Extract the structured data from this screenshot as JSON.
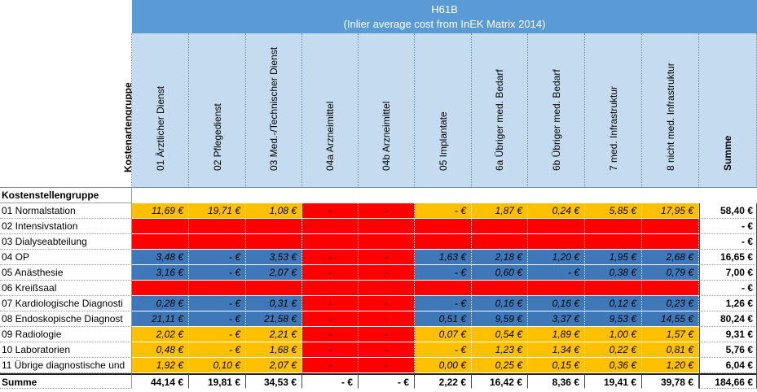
{
  "header": {
    "title": "H61B",
    "subtitle": "(Inlier average cost from InEK Matrix 2014)",
    "axis_label": "Kostenartengruppe",
    "row_group_label": "Kostenstellengruppe"
  },
  "columns": [
    "01 Ärztlicher Dienst",
    "02 Pflegedienst",
    "03 Med.-/Technischer Dienst",
    "04a Arzneimittel",
    "04b Arzneimittel",
    "05 Implantate",
    "6a Übriger med. Bedarf",
    "6b Übriger med. Bedarf",
    "7 med. Infrastruktur",
    "8 nicht med. Infrastruktur",
    "Summe"
  ],
  "colors": {
    "orange": "#ffc000",
    "red": "#ff0000",
    "blue": "#3e78b8",
    "header": "#c5dcf0",
    "title": "#5b9bd5"
  },
  "rows": [
    {
      "label": "01 Normalstation",
      "cells": [
        [
          "11,69 €",
          "o"
        ],
        [
          "19,71 €",
          "o"
        ],
        [
          "1,08 €",
          "o"
        ],
        [
          "-",
          "r"
        ],
        [
          "-",
          "r"
        ],
        [
          "-      €",
          "o"
        ],
        [
          "1,87 €",
          "o"
        ],
        [
          "0,24 €",
          "o"
        ],
        [
          "5,85 €",
          "o"
        ],
        [
          "17,95 €",
          "o"
        ]
      ],
      "sum": "58,40 €"
    },
    {
      "label": "02 Intensivstation",
      "cells": [
        [
          "",
          "r"
        ],
        [
          "",
          "r"
        ],
        [
          "",
          "r"
        ],
        [
          "",
          "r"
        ],
        [
          "",
          "r"
        ],
        [
          "",
          "r"
        ],
        [
          "",
          "r"
        ],
        [
          "",
          "r"
        ],
        [
          "",
          "r"
        ],
        [
          "",
          "r"
        ]
      ],
      "sum": "-      €"
    },
    {
      "label": "03 Dialyseabteilung",
      "cells": [
        [
          "",
          "r"
        ],
        [
          "",
          "r"
        ],
        [
          "",
          "r"
        ],
        [
          "",
          "r"
        ],
        [
          "",
          "r"
        ],
        [
          "",
          "r"
        ],
        [
          "",
          "r"
        ],
        [
          "",
          "r"
        ],
        [
          "",
          "r"
        ],
        [
          "",
          "r"
        ]
      ],
      "sum": "-      €"
    },
    {
      "label": "04 OP",
      "cells": [
        [
          "3,48 €",
          "b"
        ],
        [
          "-      €",
          "b"
        ],
        [
          "3,53 €",
          "b"
        ],
        [
          "-",
          "r"
        ],
        [
          "-",
          "r"
        ],
        [
          "1,63 €",
          "b"
        ],
        [
          "2,18 €",
          "b"
        ],
        [
          "1,20 €",
          "b"
        ],
        [
          "1,95 €",
          "b"
        ],
        [
          "2,68 €",
          "b"
        ]
      ],
      "sum": "16,65 €"
    },
    {
      "label": "05 Anästhesie",
      "cells": [
        [
          "3,16 €",
          "b"
        ],
        [
          "-      €",
          "b"
        ],
        [
          "2,07 €",
          "b"
        ],
        [
          "-",
          "r"
        ],
        [
          "-",
          "r"
        ],
        [
          "-      €",
          "b"
        ],
        [
          "0,60 €",
          "b"
        ],
        [
          "-      €",
          "b"
        ],
        [
          "0,38 €",
          "b"
        ],
        [
          "0,79 €",
          "b"
        ]
      ],
      "sum": "7,00 €"
    },
    {
      "label": "06 Kreißsaal",
      "cells": [
        [
          "",
          "r"
        ],
        [
          "",
          "r"
        ],
        [
          "",
          "r"
        ],
        [
          "",
          "r"
        ],
        [
          "",
          "r"
        ],
        [
          "",
          "r"
        ],
        [
          "",
          "r"
        ],
        [
          "",
          "r"
        ],
        [
          "",
          "r"
        ],
        [
          "",
          "r"
        ]
      ],
      "sum": "-      €"
    },
    {
      "label": "07 Kardiologische Diagnosti",
      "cells": [
        [
          "0,28 €",
          "b"
        ],
        [
          "-      €",
          "b"
        ],
        [
          "0,31 €",
          "b"
        ],
        [
          "-",
          "r"
        ],
        [
          "-",
          "r"
        ],
        [
          "-      €",
          "b"
        ],
        [
          "0,16 €",
          "b"
        ],
        [
          "0,16 €",
          "b"
        ],
        [
          "0,12 €",
          "b"
        ],
        [
          "0,23 €",
          "b"
        ]
      ],
      "sum": "1,26 €"
    },
    {
      "label": "08 Endoskopische Diagnost",
      "cells": [
        [
          "21,11 €",
          "b"
        ],
        [
          "-      €",
          "b"
        ],
        [
          "21,58 €",
          "b"
        ],
        [
          "-",
          "r"
        ],
        [
          "-",
          "r"
        ],
        [
          "0,51 €",
          "b"
        ],
        [
          "9,59 €",
          "b"
        ],
        [
          "3,37 €",
          "b"
        ],
        [
          "9,53 €",
          "b"
        ],
        [
          "14,55 €",
          "b"
        ]
      ],
      "sum": "80,24 €"
    },
    {
      "label": "09 Radiologie",
      "cells": [
        [
          "2,02 €",
          "o"
        ],
        [
          "-      €",
          "o"
        ],
        [
          "2,21 €",
          "o"
        ],
        [
          "-",
          "r"
        ],
        [
          "-",
          "r"
        ],
        [
          "0,07 €",
          "o"
        ],
        [
          "0,54 €",
          "o"
        ],
        [
          "1,89 €",
          "o"
        ],
        [
          "1,00 €",
          "o"
        ],
        [
          "1,57 €",
          "o"
        ]
      ],
      "sum": "9,31 €"
    },
    {
      "label": "10 Laboratorien",
      "cells": [
        [
          "0,48 €",
          "o"
        ],
        [
          "-      €",
          "o"
        ],
        [
          "1,68 €",
          "o"
        ],
        [
          "-",
          "r"
        ],
        [
          "-",
          "r"
        ],
        [
          "-      €",
          "o"
        ],
        [
          "1,23 €",
          "o"
        ],
        [
          "1,34 €",
          "o"
        ],
        [
          "0,22 €",
          "o"
        ],
        [
          "0,81 €",
          "o"
        ]
      ],
      "sum": "5,76 €"
    },
    {
      "label": "11 Übrige diagnostische und",
      "cells": [
        [
          "1,92 €",
          "o"
        ],
        [
          "0,10 €",
          "o"
        ],
        [
          "2,07 €",
          "o"
        ],
        [
          "-",
          "r"
        ],
        [
          "-",
          "r"
        ],
        [
          "0,00 €",
          "o"
        ],
        [
          "0,25 €",
          "o"
        ],
        [
          "0,15 €",
          "o"
        ],
        [
          "0,36 €",
          "o"
        ],
        [
          "1,20 €",
          "o"
        ]
      ],
      "sum": "6,04 €"
    }
  ],
  "total": {
    "label": "Summe",
    "cells": [
      "44,14 €",
      "19,81 €",
      "34,53 €",
      "-      €",
      "-      €",
      "2,22 €",
      "16,42 €",
      "8,36 €",
      "19,41 €",
      "39,78 €"
    ],
    "sum": "184,66 €"
  }
}
